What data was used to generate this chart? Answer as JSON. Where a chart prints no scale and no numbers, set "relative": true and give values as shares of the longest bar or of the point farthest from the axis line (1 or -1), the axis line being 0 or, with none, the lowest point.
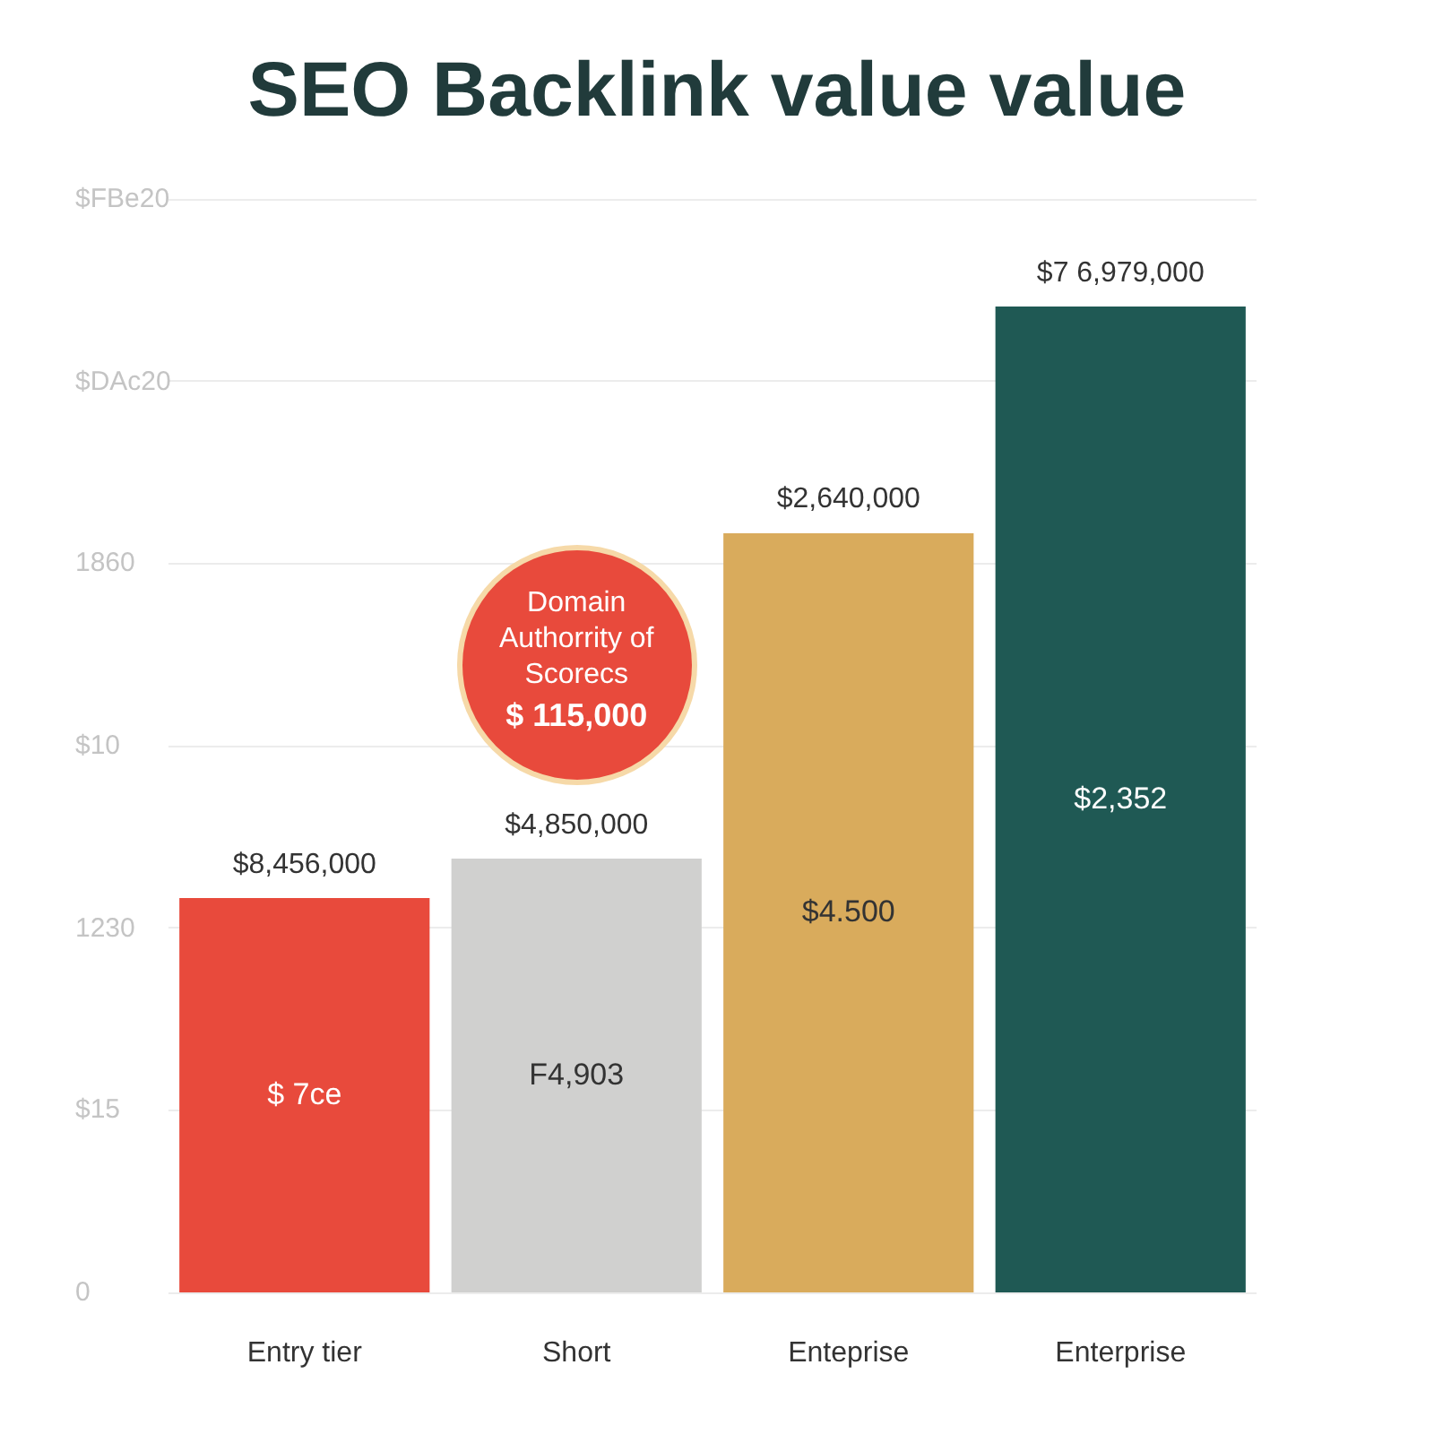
{
  "chart_data": {
    "type": "bar",
    "title": "SEO Backlink value value",
    "categories": [
      "Entry tier",
      "Short",
      "Enteprise",
      "Enterprise"
    ],
    "values": [
      0.4,
      0.44,
      0.77,
      1
    ],
    "relative": true,
    "colors": [
      "#e84a3c",
      "#d0d0cf",
      "#d9ab5c",
      "#1f5954"
    ],
    "grid": "y",
    "annotations": [
      {
        "text": "$8,456,000",
        "x": "Entry tier",
        "y": 0.4
      },
      {
        "text": "$4,850,000",
        "x": "Short",
        "y": 0.44
      },
      {
        "text": "$2,640,000",
        "x": "Enteprise",
        "y": 0.77
      },
      {
        "text": "$7 6,979,000",
        "x": "Enterprise",
        "y": 1
      },
      "$ 7ce",
      "F4,903",
      "$4.500",
      "$2,352",
      "Domain\nAuthorrity of\nScorecs\n$ 115,000",
      "$FBe20",
      "$DAc20",
      "1860",
      "$10",
      "1230",
      "$15",
      "0"
    ]
  }
}
